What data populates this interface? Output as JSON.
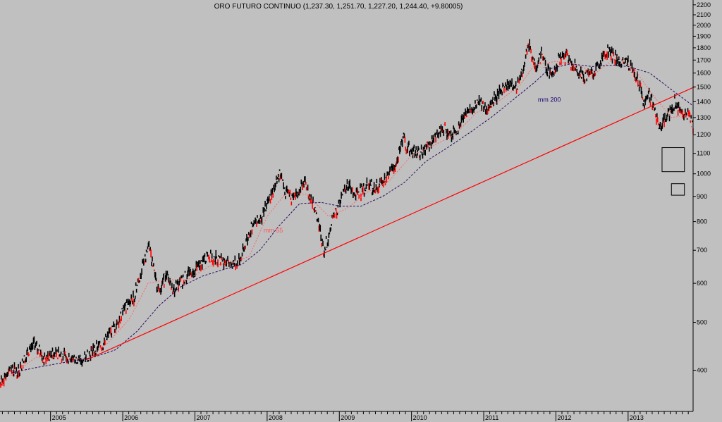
{
  "chart_data": {
    "type": "line",
    "title": "ORO FUTURO CONTINUO (1,237.30, 1,251.70, 1,227.20, 1,244.40, +9.80005)",
    "xlabel": "",
    "ylabel": "",
    "y_scale": "log",
    "ylim": [
      330,
      2250
    ],
    "xlim": [
      2004.3,
      2013.9
    ],
    "y_ticks": [
      "400",
      "500",
      "600",
      "700",
      "800",
      "900",
      "1000",
      "1100",
      "1200",
      "1300",
      "1400",
      "1500",
      "1600",
      "1700",
      "1800",
      "1900",
      "2000",
      "2100",
      "2200"
    ],
    "x_ticks": [
      "2005",
      "2006",
      "2007",
      "2008",
      "2009",
      "2010",
      "2011",
      "2012",
      "2013"
    ],
    "grid": false,
    "colors": {
      "background": "#c0c0c0",
      "price": "#000000",
      "price_highlight": "#ff0000",
      "mm55": "#ff6666",
      "mm200": "#2a0a5e",
      "trendline": "#ff0000"
    },
    "series": [
      {
        "style": "price-bars",
        "points": [
          [
            2004.3,
            375
          ],
          [
            2004.42,
            402
          ],
          [
            2004.55,
            398
          ],
          [
            2004.7,
            440
          ],
          [
            2004.77,
            452
          ],
          [
            2004.9,
            425
          ],
          [
            2005.05,
            430
          ],
          [
            2005.2,
            428
          ],
          [
            2005.35,
            420
          ],
          [
            2005.45,
            418
          ],
          [
            2005.58,
            438
          ],
          [
            2005.72,
            450
          ],
          [
            2005.85,
            480
          ],
          [
            2005.95,
            510
          ],
          [
            2006.05,
            540
          ],
          [
            2006.15,
            560
          ],
          [
            2006.28,
            650
          ],
          [
            2006.37,
            720
          ],
          [
            2006.45,
            610
          ],
          [
            2006.52,
            580
          ],
          [
            2006.6,
            630
          ],
          [
            2006.7,
            580
          ],
          [
            2006.78,
            600
          ],
          [
            2006.9,
            625
          ],
          [
            2007.0,
            640
          ],
          [
            2007.1,
            665
          ],
          [
            2007.18,
            680
          ],
          [
            2007.28,
            675
          ],
          [
            2007.38,
            665
          ],
          [
            2007.48,
            660
          ],
          [
            2007.58,
            655
          ],
          [
            2007.68,
            700
          ],
          [
            2007.75,
            760
          ],
          [
            2007.85,
            800
          ],
          [
            2007.95,
            830
          ],
          [
            2008.05,
            905
          ],
          [
            2008.12,
            960
          ],
          [
            2008.18,
            1005
          ],
          [
            2008.25,
            920
          ],
          [
            2008.35,
            890
          ],
          [
            2008.45,
            930
          ],
          [
            2008.52,
            965
          ],
          [
            2008.6,
            890
          ],
          [
            2008.7,
            820
          ],
          [
            2008.78,
            700
          ],
          [
            2008.83,
            730
          ],
          [
            2008.9,
            800
          ],
          [
            2009.0,
            870
          ],
          [
            2009.12,
            960
          ],
          [
            2009.2,
            910
          ],
          [
            2009.3,
            920
          ],
          [
            2009.4,
            950
          ],
          [
            2009.5,
            935
          ],
          [
            2009.6,
            960
          ],
          [
            2009.7,
            1000
          ],
          [
            2009.8,
            1060
          ],
          [
            2009.88,
            1190
          ],
          [
            2009.95,
            1120
          ],
          [
            2010.05,
            1110
          ],
          [
            2010.15,
            1100
          ],
          [
            2010.25,
            1150
          ],
          [
            2010.35,
            1200
          ],
          [
            2010.45,
            1240
          ],
          [
            2010.55,
            1200
          ],
          [
            2010.65,
            1240
          ],
          [
            2010.75,
            1330
          ],
          [
            2010.85,
            1370
          ],
          [
            2010.95,
            1400
          ],
          [
            2011.05,
            1340
          ],
          [
            2011.15,
            1420
          ],
          [
            2011.25,
            1480
          ],
          [
            2011.35,
            1520
          ],
          [
            2011.45,
            1500
          ],
          [
            2011.55,
            1620
          ],
          [
            2011.62,
            1850
          ],
          [
            2011.66,
            1760
          ],
          [
            2011.72,
            1640
          ],
          [
            2011.8,
            1740
          ],
          [
            2011.88,
            1620
          ],
          [
            2011.95,
            1580
          ],
          [
            2012.05,
            1720
          ],
          [
            2012.15,
            1720
          ],
          [
            2012.25,
            1650
          ],
          [
            2012.35,
            1590
          ],
          [
            2012.45,
            1580
          ],
          [
            2012.55,
            1610
          ],
          [
            2012.65,
            1720
          ],
          [
            2012.73,
            1780
          ],
          [
            2012.82,
            1720
          ],
          [
            2012.9,
            1690
          ],
          [
            2013.0,
            1670
          ],
          [
            2013.08,
            1610
          ],
          [
            2013.12,
            1560
          ],
          [
            2013.18,
            1470
          ],
          [
            2013.22,
            1400
          ],
          [
            2013.28,
            1460
          ],
          [
            2013.35,
            1380
          ],
          [
            2013.43,
            1230
          ],
          [
            2013.5,
            1280
          ],
          [
            2013.58,
            1330
          ],
          [
            2013.65,
            1410
          ],
          [
            2013.72,
            1320
          ],
          [
            2013.8,
            1330
          ],
          [
            2013.88,
            1280
          ],
          [
            2013.9,
            1244
          ]
        ]
      },
      {
        "name": "mm 55",
        "points": [
          [
            2004.45,
            390
          ],
          [
            2004.8,
            425
          ],
          [
            2005.2,
            425
          ],
          [
            2005.5,
            420
          ],
          [
            2005.8,
            455
          ],
          [
            2006.1,
            510
          ],
          [
            2006.35,
            600
          ],
          [
            2006.6,
            610
          ],
          [
            2006.9,
            610
          ],
          [
            2007.2,
            650
          ],
          [
            2007.5,
            660
          ],
          [
            2007.75,
            680
          ],
          [
            2008.0,
            820
          ],
          [
            2008.25,
            910
          ],
          [
            2008.55,
            910
          ],
          [
            2008.85,
            820
          ],
          [
            2009.1,
            850
          ],
          [
            2009.4,
            920
          ],
          [
            2009.7,
            970
          ],
          [
            2010.0,
            1090
          ],
          [
            2010.3,
            1140
          ],
          [
            2010.6,
            1200
          ],
          [
            2010.9,
            1330
          ],
          [
            2011.2,
            1400
          ],
          [
            2011.5,
            1510
          ],
          [
            2011.7,
            1660
          ],
          [
            2012.0,
            1690
          ],
          [
            2012.3,
            1660
          ],
          [
            2012.55,
            1600
          ],
          [
            2012.85,
            1730
          ],
          [
            2013.1,
            1620
          ],
          [
            2013.35,
            1440
          ],
          [
            2013.6,
            1300
          ],
          [
            2013.88,
            1320
          ]
        ]
      },
      {
        "name": "mm 200",
        "points": [
          [
            2004.45,
            395
          ],
          [
            2004.8,
            405
          ],
          [
            2005.2,
            415
          ],
          [
            2005.6,
            425
          ],
          [
            2005.9,
            440
          ],
          [
            2006.2,
            480
          ],
          [
            2006.5,
            540
          ],
          [
            2006.8,
            590
          ],
          [
            2007.1,
            620
          ],
          [
            2007.4,
            640
          ],
          [
            2007.65,
            655
          ],
          [
            2007.9,
            700
          ],
          [
            2008.15,
            780
          ],
          [
            2008.45,
            870
          ],
          [
            2008.75,
            875
          ],
          [
            2009.0,
            860
          ],
          [
            2009.3,
            860
          ],
          [
            2009.6,
            900
          ],
          [
            2009.9,
            960
          ],
          [
            2010.2,
            1060
          ],
          [
            2010.5,
            1130
          ],
          [
            2010.8,
            1210
          ],
          [
            2011.1,
            1300
          ],
          [
            2011.4,
            1410
          ],
          [
            2011.7,
            1530
          ],
          [
            2011.9,
            1630
          ],
          [
            2012.2,
            1670
          ],
          [
            2012.5,
            1650
          ],
          [
            2012.8,
            1660
          ],
          [
            2013.0,
            1650
          ],
          [
            2013.3,
            1600
          ],
          [
            2013.55,
            1500
          ],
          [
            2013.88,
            1380
          ]
        ]
      }
    ],
    "trendline": {
      "from": [
        2005.5,
        420
      ],
      "to": [
        2013.92,
        1500
      ]
    },
    "annotations": [
      {
        "text": "mm 55",
        "x": 2007.95,
        "y": 760,
        "color": "#ff5555"
      },
      {
        "text": "mm 200",
        "x": 2011.75,
        "y": 1400,
        "color": "#1a0070"
      }
    ],
    "boxes": [
      {
        "x0": 2013.47,
        "x1": 2013.78,
        "y0": 1010,
        "y1": 1130
      },
      {
        "x0": 2013.6,
        "x1": 2013.78,
        "y0": 905,
        "y1": 955
      }
    ]
  }
}
